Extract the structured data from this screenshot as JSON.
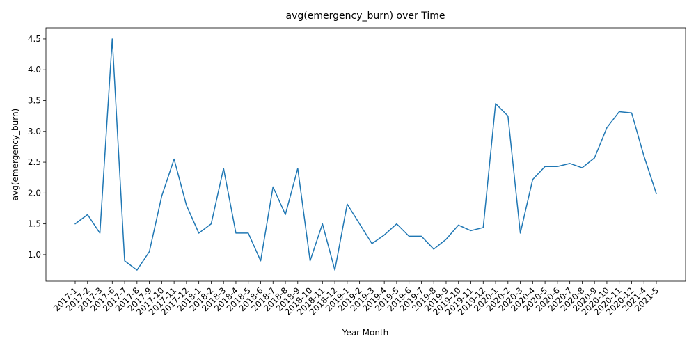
{
  "chart_data": {
    "type": "line",
    "title": "avg(emergency_burn) over Time",
    "xlabel": "Year-Month",
    "ylabel": "avg(emergency_burn)",
    "ylim": [
      0.57,
      4.68
    ],
    "yticks": [
      1.0,
      1.5,
      2.0,
      2.5,
      3.0,
      3.5,
      4.0,
      4.5
    ],
    "ytick_labels": [
      "1.0",
      "1.5",
      "2.0",
      "2.5",
      "3.0",
      "3.5",
      "4.0",
      "4.5"
    ],
    "grid": false,
    "line_color": "#1f77b4",
    "categories": [
      "2017-1",
      "2017-2",
      "2017-3",
      "2017-6",
      "2017-7",
      "2017-8",
      "2017-9",
      "2017-10",
      "2017-11",
      "2017-12",
      "2018-1",
      "2018-2",
      "2018-3",
      "2018-4",
      "2018-5",
      "2018-6",
      "2018-7",
      "2018-8",
      "2018-9",
      "2018-10",
      "2018-11",
      "2018-12",
      "2019-1",
      "2019-2",
      "2019-3",
      "2019-4",
      "2019-5",
      "2019-6",
      "2019-7",
      "2019-8",
      "2019-9",
      "2019-10",
      "2019-11",
      "2019-12",
      "2020-1",
      "2020-2",
      "2020-3",
      "2020-4",
      "2020-5",
      "2020-6",
      "2020-7",
      "2020-8",
      "2020-9",
      "2020-10",
      "2020-11",
      "2020-12",
      "2021-4",
      "2021-5"
    ],
    "values": [
      1.5,
      1.65,
      1.35,
      4.5,
      0.9,
      0.75,
      1.05,
      1.95,
      2.55,
      1.8,
      1.35,
      1.5,
      2.4,
      1.35,
      1.35,
      0.9,
      2.1,
      1.65,
      2.4,
      0.9,
      1.5,
      0.75,
      1.82,
      1.5,
      1.18,
      1.32,
      1.5,
      1.3,
      1.3,
      1.09,
      1.25,
      1.48,
      1.39,
      1.44,
      3.45,
      3.25,
      1.35,
      2.22,
      2.43,
      2.43,
      2.48,
      2.41,
      2.57,
      3.06,
      3.32,
      3.3,
      2.6,
      1.99
    ]
  }
}
